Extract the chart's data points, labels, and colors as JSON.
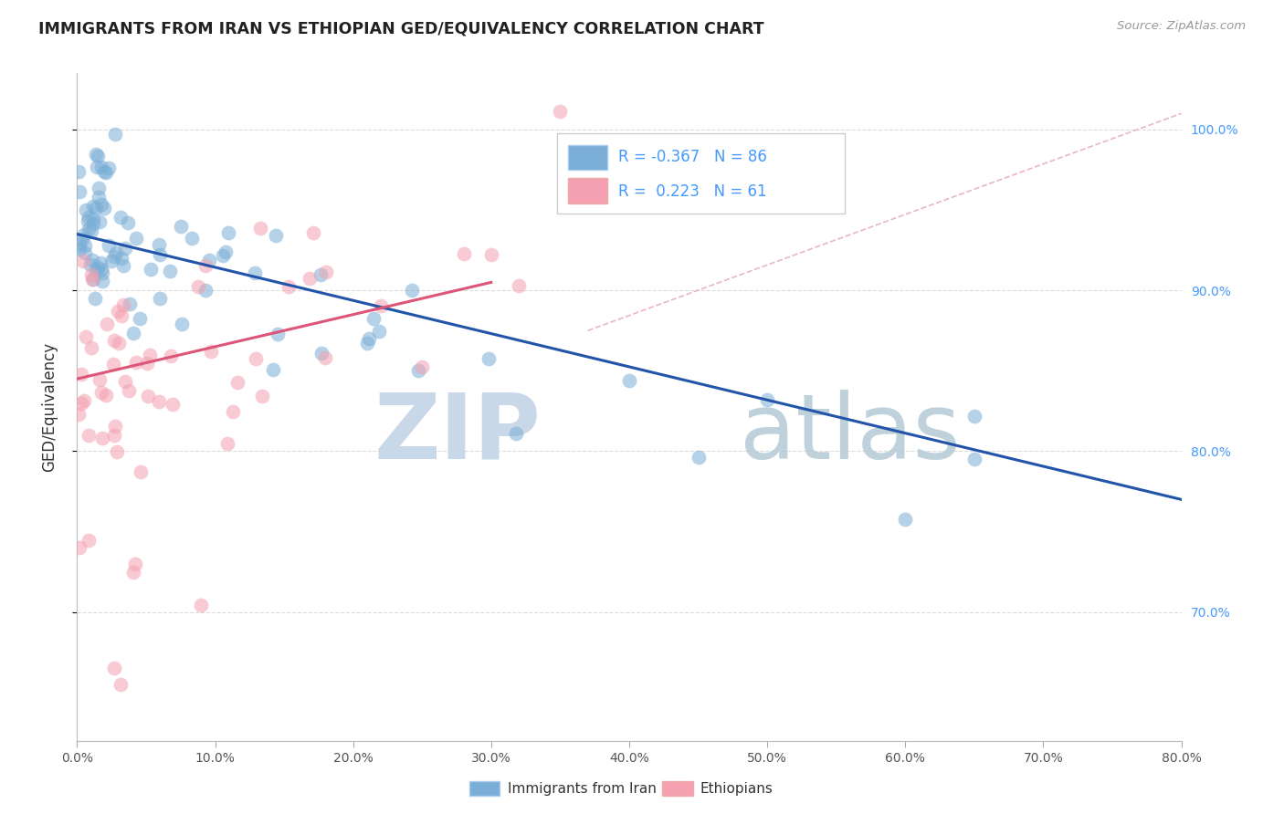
{
  "title": "IMMIGRANTS FROM IRAN VS ETHIOPIAN GED/EQUIVALENCY CORRELATION CHART",
  "source": "Source: ZipAtlas.com",
  "ylabel": "GED/Equivalency",
  "xlim": [
    0.0,
    80.0
  ],
  "ylim": [
    62.0,
    103.5
  ],
  "blue_label": "Immigrants from Iran",
  "pink_label": "Ethiopians",
  "blue_R": -0.367,
  "blue_N": 86,
  "pink_R": 0.223,
  "pink_N": 61,
  "blue_color": "#7aaed6",
  "pink_color": "#f4a0b0",
  "blue_line_color": "#2255aa",
  "pink_line_color": "#dd5577",
  "diag_line_color": "#e8a8b8",
  "watermark_zip_color": "#c8d8e8",
  "watermark_atlas_color": "#b8ccd8",
  "grid_color": "#cccccc",
  "title_color": "#222222",
  "source_color": "#999999",
  "right_axis_color": "#4499ff",
  "blue_line_x0": 0,
  "blue_line_x1": 80,
  "blue_line_y0": 93.5,
  "blue_line_y1": 77.0,
  "pink_line_x0": 0,
  "pink_line_x1": 30,
  "pink_line_y0": 84.5,
  "pink_line_y1": 90.5,
  "diag_x0": 37,
  "diag_x1": 80,
  "diag_y0": 87.5,
  "diag_y1": 101.0
}
